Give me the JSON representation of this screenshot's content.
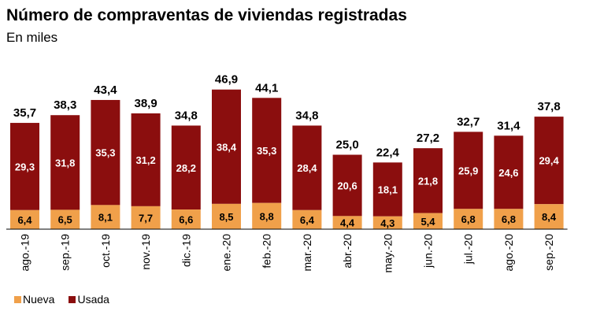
{
  "chart_data": {
    "type": "bar",
    "stacked": true,
    "title": "Número de compraventas de viviendas registradas",
    "subtitle": "En miles",
    "categories": [
      "ago.-19",
      "sep.-19",
      "oct.-19",
      "nov.-19",
      "dic.-19",
      "ene.-20",
      "feb.-20",
      "mar.-20",
      "abr.-20",
      "may.-20",
      "jun.-20",
      "jul.-20",
      "ago.-20",
      "sep.-20"
    ],
    "series": [
      {
        "name": "Nueva",
        "color": "#f0a04a",
        "values": [
          6.4,
          6.5,
          8.1,
          7.7,
          6.6,
          8.5,
          8.8,
          6.4,
          4.4,
          4.3,
          5.4,
          6.8,
          6.8,
          8.4
        ],
        "labels": [
          "6,4",
          "6,5",
          "8,1",
          "7,7",
          "6,6",
          "8,5",
          "8,8",
          "6,4",
          "4,4",
          "4,3",
          "5,4",
          "6,8",
          "6,8",
          "8,4"
        ]
      },
      {
        "name": "Usada",
        "color": "#8b0e0e",
        "values": [
          29.3,
          31.8,
          35.3,
          31.2,
          28.2,
          38.4,
          35.3,
          28.4,
          20.6,
          18.1,
          21.8,
          25.9,
          24.6,
          29.4
        ],
        "labels": [
          "29,3",
          "31,8",
          "35,3",
          "31,2",
          "28,2",
          "38,4",
          "35,3",
          "28,4",
          "20,6",
          "18,1",
          "21,8",
          "25,9",
          "24,6",
          "29,4"
        ]
      }
    ],
    "totals": [
      35.7,
      38.3,
      43.4,
      38.9,
      34.8,
      46.9,
      44.1,
      34.8,
      25.0,
      22.4,
      27.2,
      32.7,
      31.4,
      37.8
    ],
    "total_labels": [
      "35,7",
      "38,3",
      "43,4",
      "38,9",
      "34,8",
      "46,9",
      "44,1",
      "34,8",
      "25,0",
      "22,4",
      "27,2",
      "32,7",
      "31,4",
      "37,8"
    ],
    "legend": [
      {
        "name": "Nueva",
        "color": "#f0a04a"
      },
      {
        "name": "Usada",
        "color": "#8b0e0e"
      }
    ],
    "xlabel": "",
    "ylabel": "",
    "ylim": [
      0,
      48
    ]
  }
}
